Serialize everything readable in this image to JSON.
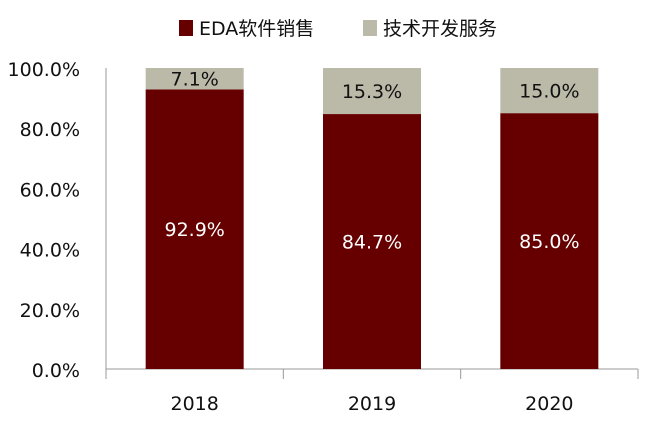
{
  "chart_data": {
    "type": "bar",
    "stacked": true,
    "categories": [
      "2018",
      "2019",
      "2020"
    ],
    "series": [
      {
        "name": "EDA软件销售",
        "values": [
          92.9,
          84.7,
          85.0
        ],
        "labels": [
          "92.9%",
          "84.7%",
          "85.0%"
        ],
        "color": "#660000"
      },
      {
        "name": "技术开发服务",
        "values": [
          7.1,
          15.3,
          15.0
        ],
        "labels": [
          "7.1%",
          "15.3%",
          "15.0%"
        ],
        "color": "#BBB9A8"
      }
    ],
    "ylim": [
      0,
      100
    ],
    "yticks": [
      "0.0%",
      "20.0%",
      "40.0%",
      "60.0%",
      "80.0%",
      "100.0%"
    ],
    "legend": "top",
    "grid": false
  }
}
